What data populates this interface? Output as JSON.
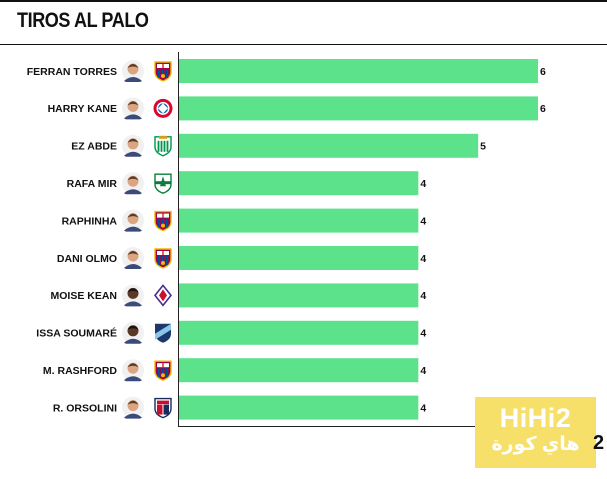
{
  "title": "TIROS AL PALO",
  "colors": {
    "bar": "#5ce28a",
    "axis": "#222222",
    "background": "#ffffff",
    "watermark": "#f7e06a"
  },
  "chart_data": {
    "type": "bar",
    "orientation": "horizontal",
    "title": "TIROS AL PALO",
    "categories": [
      "FERRAN TORRES",
      "HARRY KANE",
      "EZ ABDE",
      "RAFA MIR",
      "RAPHINHA",
      "DANI OLMO",
      "MOISE KEAN",
      "ISSA SOUMARÉ",
      "M. RASHFORD",
      "R. ORSOLINI"
    ],
    "values": [
      6,
      6,
      5,
      4,
      4,
      4,
      4,
      4,
      4,
      4
    ],
    "club_icons": [
      "barcelona-crest",
      "bayern-crest",
      "betis-crest",
      "elche-crest",
      "barcelona-crest",
      "barcelona-crest",
      "fiorentina-crest",
      "le-havre-crest",
      "barcelona-crest",
      "bologna-crest"
    ],
    "xlim": [
      0,
      6
    ],
    "data_labels": true,
    "grid": false,
    "xlabel": "",
    "ylabel": ""
  },
  "watermark": {
    "line1": "HiHi2",
    "line2": "هاي كورة"
  },
  "corner_mark": "2"
}
